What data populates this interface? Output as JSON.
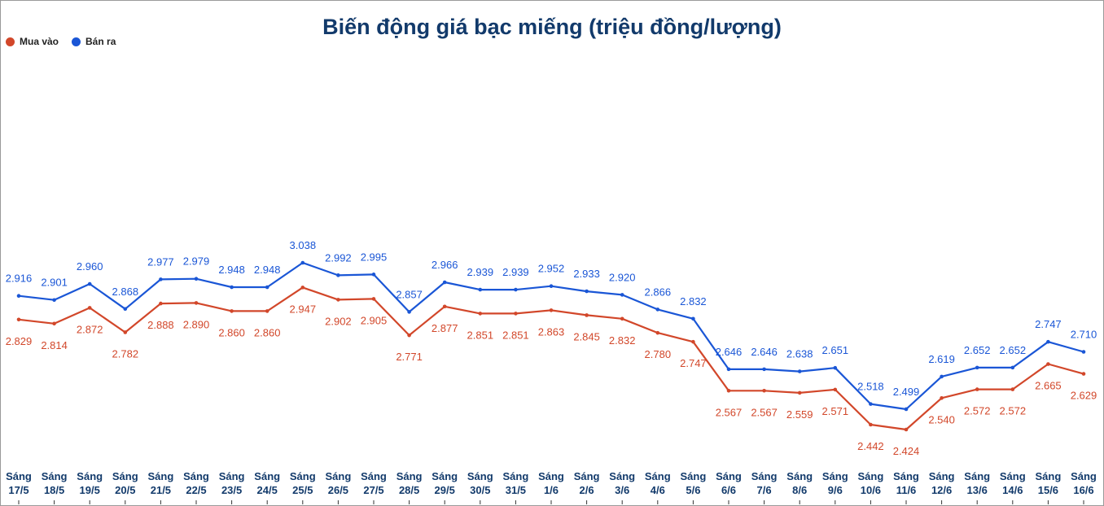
{
  "chart_data": {
    "type": "line",
    "title": "Biến động giá bạc miếng (triệu đồng/lượng)",
    "categories": [
      [
        "Sáng",
        "17/5"
      ],
      [
        "Sáng",
        "18/5"
      ],
      [
        "Sáng",
        "19/5"
      ],
      [
        "Sáng",
        "20/5"
      ],
      [
        "Sáng",
        "21/5"
      ],
      [
        "Sáng",
        "22/5"
      ],
      [
        "Sáng",
        "23/5"
      ],
      [
        "Sáng",
        "24/5"
      ],
      [
        "Sáng",
        "25/5"
      ],
      [
        "Sáng",
        "26/5"
      ],
      [
        "Sáng",
        "27/5"
      ],
      [
        "Sáng",
        "28/5"
      ],
      [
        "Sáng",
        "29/5"
      ],
      [
        "Sáng",
        "30/5"
      ],
      [
        "Sáng",
        "31/5"
      ],
      [
        "Sáng",
        "1/6"
      ],
      [
        "Sáng",
        "2/6"
      ],
      [
        "Sáng",
        "3/6"
      ],
      [
        "Sáng",
        "4/6"
      ],
      [
        "Sáng",
        "5/6"
      ],
      [
        "Sáng",
        "6/6"
      ],
      [
        "Sáng",
        "7/6"
      ],
      [
        "Sáng",
        "8/6"
      ],
      [
        "Sáng",
        "9/6"
      ],
      [
        "Sáng",
        "10/6"
      ],
      [
        "Sáng",
        "11/6"
      ],
      [
        "Sáng",
        "12/6"
      ],
      [
        "Sáng",
        "13/6"
      ],
      [
        "Sáng",
        "14/6"
      ],
      [
        "Sáng",
        "15/6"
      ],
      [
        "Sáng",
        "16/6"
      ]
    ],
    "series": [
      {
        "name": "Mua vào",
        "color": "#d2472a",
        "values": [
          2.829,
          2.814,
          2.872,
          2.782,
          2.888,
          2.89,
          2.86,
          2.86,
          2.947,
          2.902,
          2.905,
          2.771,
          2.877,
          2.851,
          2.851,
          2.863,
          2.845,
          2.832,
          2.78,
          2.747,
          2.567,
          2.567,
          2.559,
          2.571,
          2.442,
          2.424,
          2.54,
          2.572,
          2.572,
          2.665,
          2.629
        ],
        "labels": [
          "2.829",
          "2.814",
          "2.872",
          "2.782",
          "2.888",
          "2.890",
          "2.860",
          "2.860",
          "2.947",
          "2.902",
          "2.905",
          "2.771",
          "2.877",
          "2.851",
          "2.851",
          "2.863",
          "2.845",
          "2.832",
          "2.780",
          "2.747",
          "2.567",
          "2.567",
          "2.559",
          "2.571",
          "2.442",
          "2.424",
          "2.540",
          "2.572",
          "2.572",
          "2.665",
          "2.629"
        ]
      },
      {
        "name": "Bán ra",
        "color": "#1a56d6",
        "values": [
          2.916,
          2.901,
          2.96,
          2.868,
          2.977,
          2.979,
          2.948,
          2.948,
          3.038,
          2.992,
          2.995,
          2.857,
          2.966,
          2.939,
          2.939,
          2.952,
          2.933,
          2.92,
          2.866,
          2.832,
          2.646,
          2.646,
          2.638,
          2.651,
          2.518,
          2.499,
          2.619,
          2.652,
          2.652,
          2.747,
          2.71
        ],
        "labels": [
          "2.916",
          "2.901",
          "2.960",
          "2.868",
          "2.977",
          "2.979",
          "2.948",
          "2.948",
          "3.038",
          "2.992",
          "2.995",
          "2.857",
          "2.966",
          "2.939",
          "2.939",
          "2.952",
          "2.933",
          "2.920",
          "2.866",
          "2.832",
          "2.646",
          "2.646",
          "2.638",
          "2.651",
          "2.518",
          "2.499",
          "2.619",
          "2.652",
          "2.652",
          "2.747",
          "2.710"
        ]
      }
    ],
    "legend_position": "top-left",
    "grid": false,
    "tick_color": "#123a6b"
  }
}
